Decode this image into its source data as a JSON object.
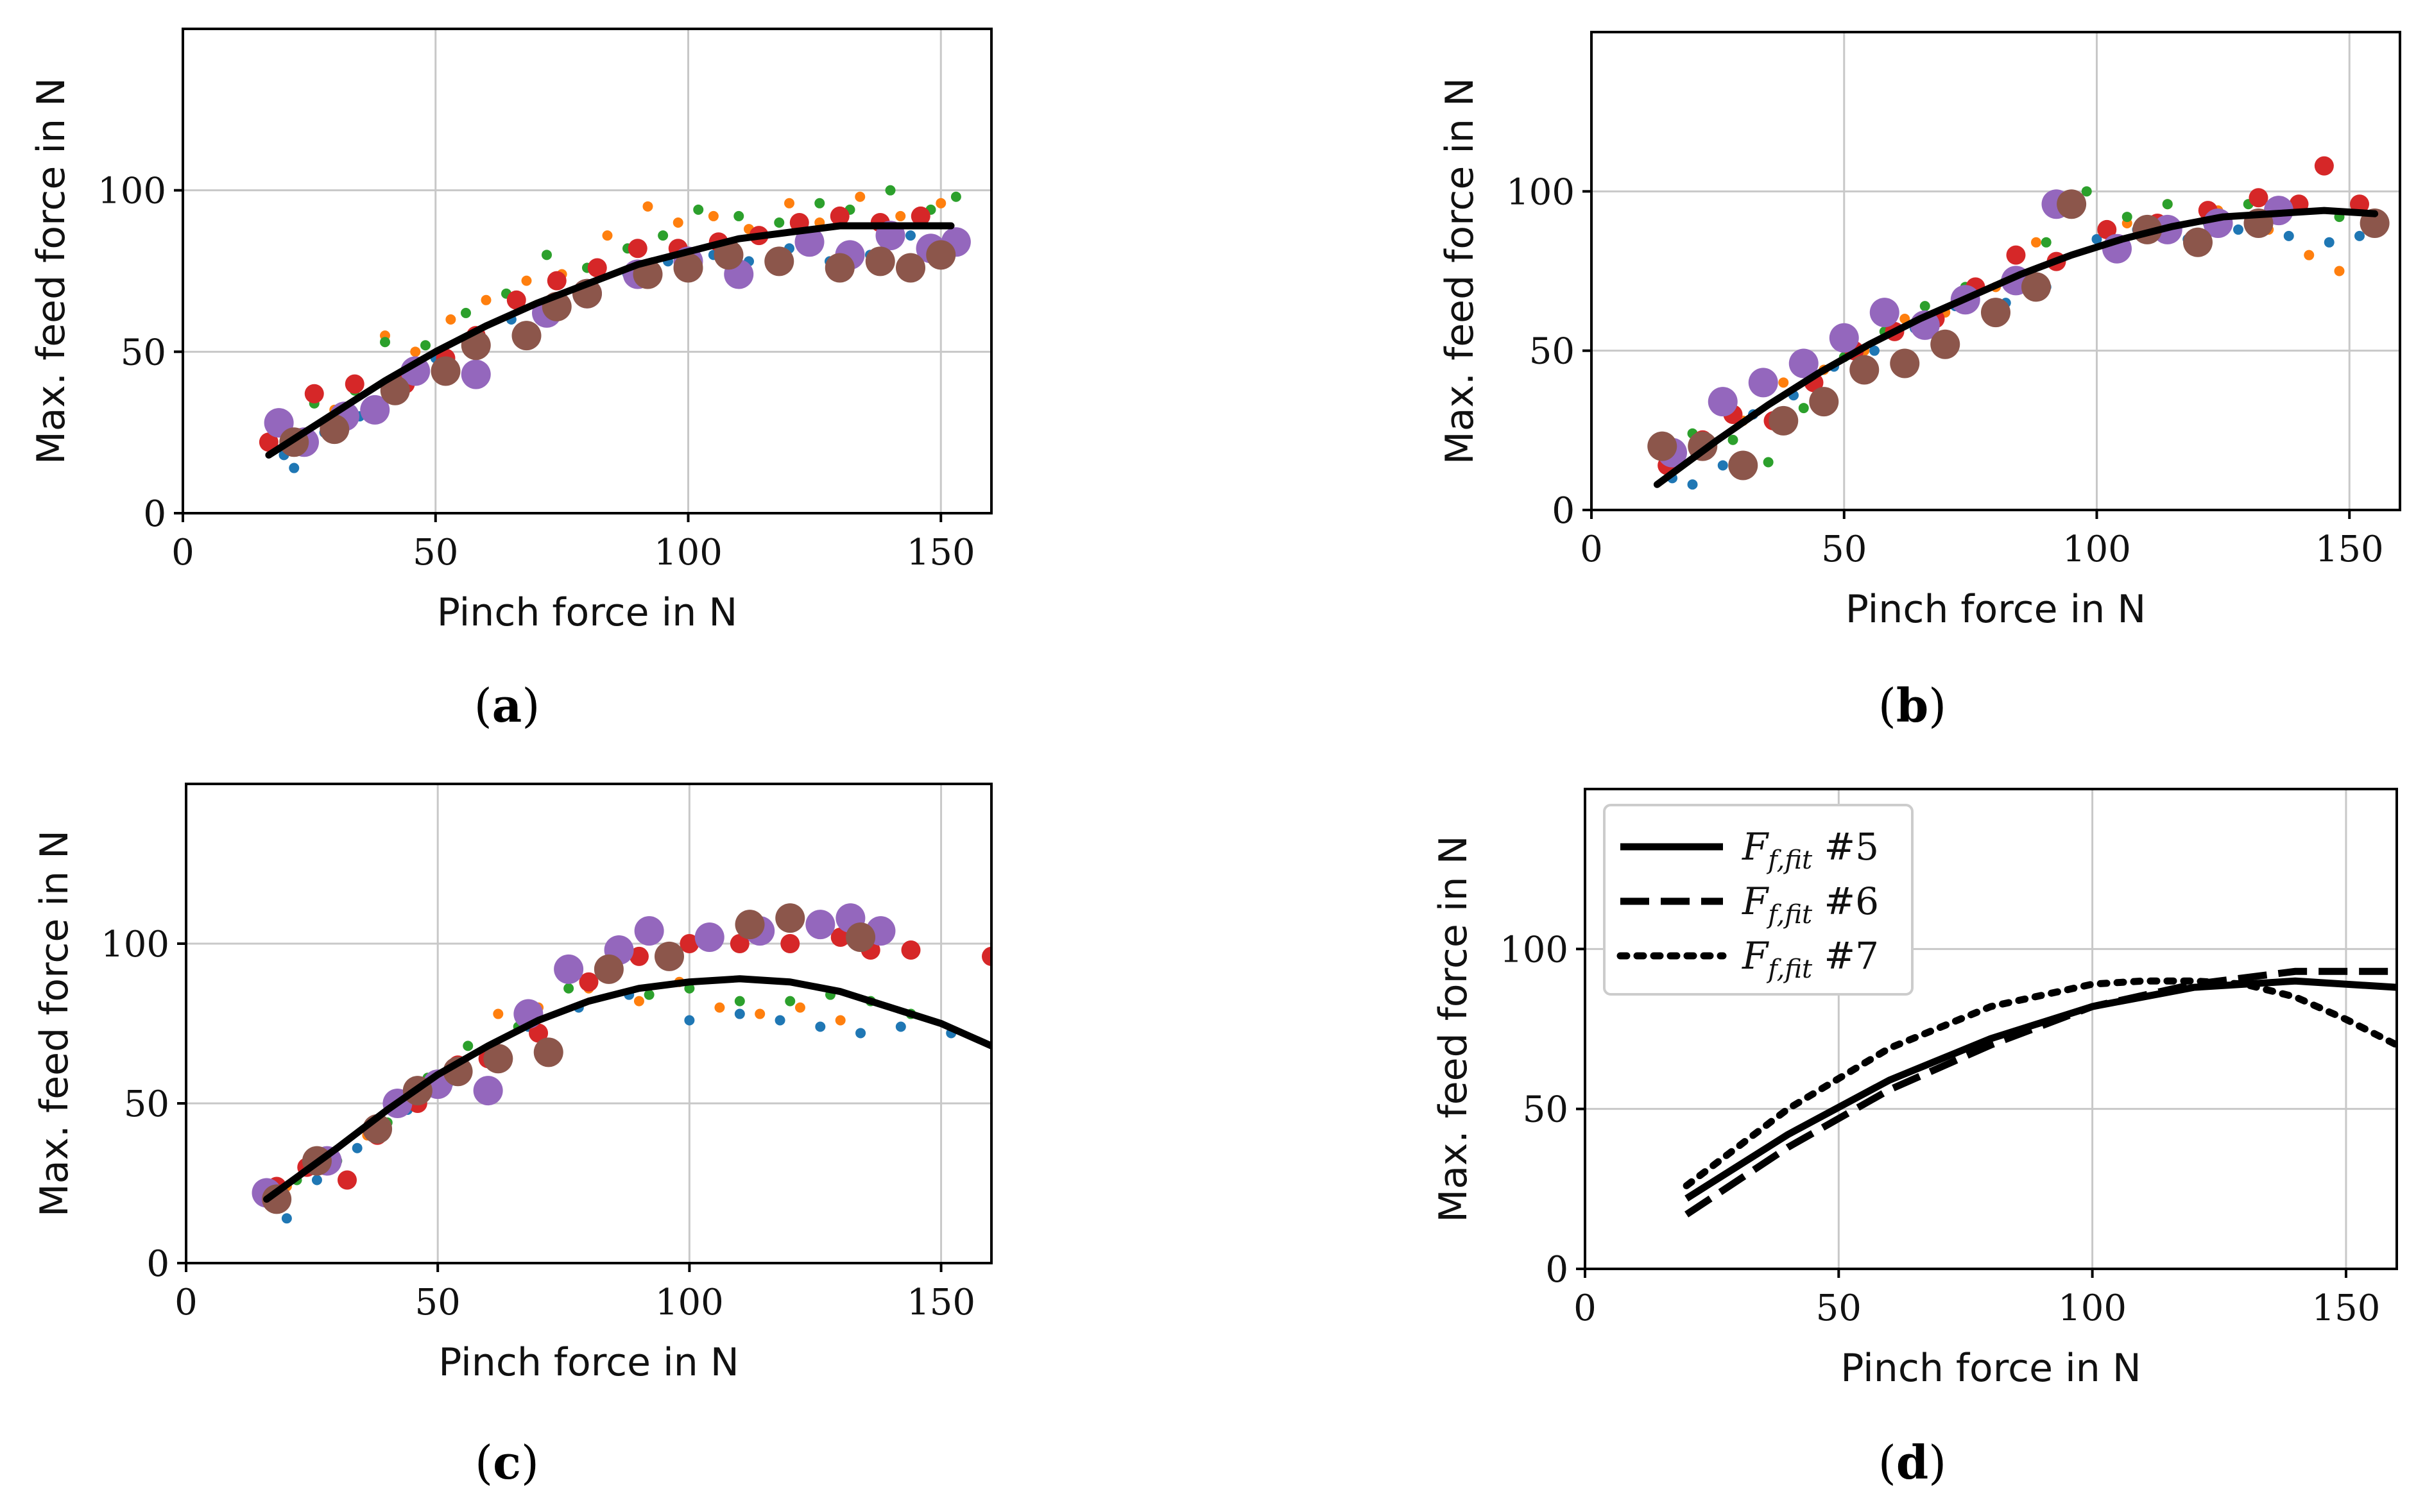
{
  "figure": {
    "type": "Chart"
  },
  "chart_data": [
    {
      "panel": "a",
      "caption_letter": "a",
      "type": "scatter",
      "xlabel": "Pinch force in N",
      "ylabel": "Max. feed force in N",
      "xlim": [
        0,
        160
      ],
      "ylim": [
        0,
        150
      ],
      "xticks": [
        0,
        50,
        100,
        150
      ],
      "yticks": [
        0,
        50,
        100
      ],
      "grid": true,
      "colors": [
        "#1f77b4",
        "#ff7f0e",
        "#2ca02c",
        "#d62728",
        "#9467bd",
        "#8c564b"
      ],
      "fit_curve": {
        "x": [
          17,
          30,
          40,
          50,
          60,
          70,
          80,
          90,
          100,
          110,
          120,
          130,
          140,
          152
        ],
        "y": [
          18,
          31,
          41,
          50,
          58,
          65,
          71,
          77,
          81,
          85,
          87,
          89,
          89,
          89
        ]
      },
      "series": [
        {
          "color": "#1f77b4",
          "size": "small",
          "x": [
            20,
            22,
            28,
            35,
            42,
            50,
            58,
            65,
            72,
            80,
            88,
            96,
            105,
            112,
            120,
            128,
            136,
            144,
            150
          ],
          "y": [
            18,
            14,
            25,
            30,
            38,
            48,
            50,
            60,
            62,
            66,
            74,
            78,
            80,
            78,
            82,
            78,
            80,
            86,
            82
          ]
        },
        {
          "color": "#ff7f0e",
          "size": "small",
          "x": [
            22,
            30,
            40,
            46,
            53,
            60,
            68,
            75,
            84,
            92,
            98,
            105,
            112,
            120,
            126,
            134,
            142,
            150
          ],
          "y": [
            22,
            32,
            55,
            50,
            60,
            66,
            72,
            74,
            86,
            95,
            90,
            92,
            88,
            96,
            90,
            98,
            92,
            96
          ]
        },
        {
          "color": "#2ca02c",
          "size": "small",
          "x": [
            19,
            26,
            34,
            40,
            48,
            56,
            64,
            72,
            80,
            88,
            95,
            102,
            110,
            118,
            126,
            132,
            140,
            148,
            153
          ],
          "y": [
            28,
            34,
            38,
            53,
            52,
            62,
            68,
            80,
            76,
            82,
            86,
            94,
            92,
            90,
            96,
            94,
            100,
            94,
            98
          ]
        },
        {
          "color": "#d62728",
          "size": "medium",
          "x": [
            17,
            26,
            34,
            44,
            52,
            58,
            66,
            74,
            82,
            90,
            98,
            106,
            114,
            122,
            130,
            138,
            146
          ],
          "y": [
            22,
            37,
            40,
            40,
            48,
            55,
            66,
            72,
            76,
            82,
            82,
            84,
            86,
            90,
            92,
            90,
            92
          ]
        },
        {
          "color": "#9467bd",
          "size": "large",
          "x": [
            19,
            24,
            32,
            38,
            46,
            58,
            72,
            80,
            90,
            100,
            110,
            124,
            132,
            140,
            148,
            153
          ],
          "y": [
            28,
            22,
            30,
            32,
            44,
            43,
            62,
            68,
            74,
            78,
            74,
            84,
            80,
            86,
            82,
            84
          ]
        },
        {
          "color": "#8c564b",
          "size": "large",
          "x": [
            22,
            30,
            42,
            52,
            58,
            68,
            74,
            80,
            92,
            100,
            108,
            118,
            130,
            138,
            144,
            150
          ],
          "y": [
            22,
            26,
            38,
            44,
            52,
            55,
            64,
            68,
            74,
            76,
            80,
            78,
            76,
            78,
            76,
            80
          ]
        }
      ]
    },
    {
      "panel": "b",
      "caption_letter": "b",
      "type": "scatter",
      "xlabel": "Pinch force in N",
      "ylabel": "Max. feed force in N",
      "xlim": [
        0,
        160
      ],
      "ylim": [
        0,
        150
      ],
      "xticks": [
        0,
        50,
        100,
        150
      ],
      "yticks": [
        0,
        50,
        100
      ],
      "grid": true,
      "colors": [
        "#1f77b4",
        "#ff7f0e",
        "#2ca02c",
        "#d62728",
        "#9467bd",
        "#8c564b"
      ],
      "fit_curve": {
        "x": [
          13,
          25,
          35,
          45,
          55,
          65,
          75,
          85,
          95,
          105,
          115,
          125,
          135,
          145,
          155
        ],
        "y": [
          8,
          22,
          33,
          43,
          52,
          60,
          67,
          74,
          80,
          85,
          89,
          92,
          93,
          94,
          93
        ]
      },
      "series": [
        {
          "color": "#1f77b4",
          "size": "small",
          "x": [
            16,
            20,
            26,
            32,
            40,
            48,
            56,
            64,
            72,
            82,
            90,
            100,
            108,
            118,
            128,
            138,
            146,
            152
          ],
          "y": [
            10,
            8,
            14,
            30,
            36,
            45,
            50,
            57,
            64,
            65,
            70,
            85,
            88,
            85,
            88,
            86,
            84,
            86
          ]
        },
        {
          "color": "#ff7f0e",
          "size": "small",
          "x": [
            15,
            22,
            30,
            38,
            46,
            54,
            62,
            70,
            80,
            88,
            96,
            106,
            114,
            124,
            134,
            142,
            148
          ],
          "y": [
            15,
            22,
            28,
            40,
            44,
            50,
            60,
            62,
            70,
            84,
            96,
            90,
            96,
            94,
            88,
            80,
            75
          ]
        },
        {
          "color": "#2ca02c",
          "size": "small",
          "x": [
            14,
            20,
            28,
            35,
            42,
            50,
            58,
            66,
            74,
            82,
            90,
            98,
            106,
            114,
            122,
            130,
            140,
            148
          ],
          "y": [
            20,
            24,
            22,
            15,
            32,
            48,
            56,
            64,
            70,
            72,
            84,
            100,
            92,
            96,
            90,
            96,
            96,
            92
          ]
        },
        {
          "color": "#d62728",
          "size": "medium",
          "x": [
            15,
            22,
            28,
            36,
            44,
            52,
            60,
            68,
            76,
            84,
            92,
            102,
            112,
            122,
            132,
            140,
            145,
            152
          ],
          "y": [
            14,
            22,
            30,
            28,
            40,
            50,
            56,
            60,
            70,
            80,
            78,
            88,
            90,
            94,
            98,
            96,
            108,
            96
          ]
        },
        {
          "color": "#9467bd",
          "size": "large",
          "x": [
            16,
            26,
            34,
            42,
            50,
            58,
            66,
            74,
            84,
            92,
            104,
            114,
            124,
            136
          ],
          "y": [
            18,
            34,
            40,
            46,
            54,
            62,
            58,
            66,
            72,
            96,
            82,
            88,
            90,
            94
          ]
        },
        {
          "color": "#8c564b",
          "size": "large",
          "x": [
            14,
            22,
            30,
            38,
            46,
            54,
            62,
            70,
            80,
            88,
            95,
            110,
            120,
            132,
            155
          ],
          "y": [
            20,
            20,
            14,
            28,
            34,
            44,
            46,
            52,
            62,
            70,
            96,
            88,
            84,
            90,
            90
          ]
        }
      ]
    },
    {
      "panel": "c",
      "caption_letter": "c",
      "type": "scatter",
      "xlabel": "Pinch force in N",
      "ylabel": "Max. feed force in N",
      "xlim": [
        0,
        160
      ],
      "ylim": [
        0,
        150
      ],
      "xticks": [
        0,
        50,
        100,
        150
      ],
      "yticks": [
        0,
        50,
        100
      ],
      "grid": true,
      "colors": [
        "#1f77b4",
        "#ff7f0e",
        "#2ca02c",
        "#d62728",
        "#9467bd",
        "#8c564b"
      ],
      "fit_curve": {
        "x": [
          16,
          30,
          40,
          50,
          60,
          70,
          80,
          90,
          100,
          110,
          120,
          130,
          140,
          150,
          160
        ],
        "y": [
          20,
          36,
          48,
          59,
          68,
          76,
          82,
          86,
          88,
          89,
          88,
          85,
          80,
          75,
          68
        ]
      },
      "series": [
        {
          "color": "#1f77b4",
          "size": "small",
          "x": [
            18,
            20,
            26,
            34,
            44,
            52,
            60,
            68,
            78,
            88,
            100,
            110,
            118,
            126,
            134,
            142,
            152
          ],
          "y": [
            20,
            14,
            26,
            36,
            48,
            56,
            66,
            74,
            80,
            84,
            76,
            78,
            76,
            74,
            72,
            74,
            72
          ]
        },
        {
          "color": "#ff7f0e",
          "size": "small",
          "x": [
            20,
            28,
            36,
            44,
            52,
            62,
            70,
            80,
            90,
            98,
            106,
            114,
            122,
            130
          ],
          "y": [
            24,
            30,
            40,
            50,
            60,
            78,
            80,
            86,
            82,
            88,
            80,
            78,
            80,
            76
          ]
        },
        {
          "color": "#2ca02c",
          "size": "small",
          "x": [
            22,
            30,
            40,
            48,
            56,
            66,
            76,
            84,
            92,
            100,
            110,
            120,
            128,
            136,
            144
          ],
          "y": [
            26,
            32,
            44,
            58,
            68,
            74,
            86,
            90,
            84,
            86,
            82,
            82,
            84,
            82,
            78
          ]
        },
        {
          "color": "#d62728",
          "size": "medium",
          "x": [
            18,
            24,
            32,
            38,
            46,
            54,
            60,
            70,
            80,
            90,
            100,
            110,
            120,
            130,
            136,
            144,
            160
          ],
          "y": [
            24,
            30,
            26,
            40,
            50,
            62,
            64,
            72,
            88,
            96,
            100,
            100,
            100,
            102,
            98,
            98,
            96
          ]
        },
        {
          "color": "#9467bd",
          "size": "large",
          "x": [
            16,
            28,
            42,
            50,
            60,
            68,
            76,
            86,
            92,
            104,
            114,
            126,
            132,
            138
          ],
          "y": [
            22,
            32,
            50,
            56,
            54,
            78,
            92,
            98,
            104,
            102,
            104,
            106,
            108,
            104
          ]
        },
        {
          "color": "#8c564b",
          "size": "large",
          "x": [
            18,
            26,
            38,
            46,
            54,
            62,
            72,
            84,
            96,
            112,
            120,
            134
          ],
          "y": [
            20,
            32,
            42,
            54,
            60,
            64,
            66,
            92,
            96,
            106,
            108,
            102
          ]
        }
      ]
    },
    {
      "panel": "d",
      "caption_letter": "d",
      "type": "line",
      "xlabel": "Pinch force in N",
      "ylabel": "Max. feed force in N",
      "xlim": [
        0,
        160
      ],
      "ylim": [
        0,
        150
      ],
      "xticks": [
        0,
        50,
        100,
        150
      ],
      "yticks": [
        0,
        50,
        100
      ],
      "grid": true,
      "legend_placement": "top-left",
      "series": [
        {
          "name_main": "F",
          "name_sub": "f,fit",
          "name_suffix": " #5",
          "style": "solid",
          "x": [
            20,
            40,
            60,
            80,
            100,
            120,
            140,
            160
          ],
          "y": [
            22,
            42,
            59,
            72,
            82,
            88,
            90,
            88
          ]
        },
        {
          "name_main": "F",
          "name_sub": "f,fit",
          "name_suffix": " #6",
          "style": "dashed",
          "x": [
            20,
            40,
            60,
            80,
            100,
            120,
            140,
            160
          ],
          "y": [
            17,
            38,
            56,
            70,
            82,
            89,
            93,
            93
          ]
        },
        {
          "name_main": "F",
          "name_sub": "f,fit",
          "name_suffix": " #7",
          "style": "dotted",
          "x": [
            20,
            40,
            60,
            80,
            100,
            110,
            120,
            130,
            140,
            150,
            160
          ],
          "y": [
            26,
            50,
            69,
            82,
            89,
            90,
            90,
            89,
            85,
            78,
            70
          ]
        }
      ]
    }
  ]
}
